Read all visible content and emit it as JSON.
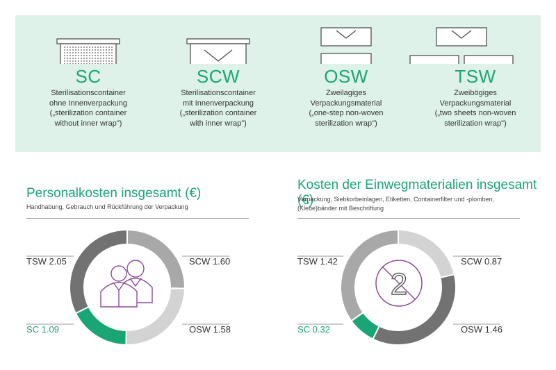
{
  "colors": {
    "accent": "#1aa674",
    "panel_bg": "#dff2ea",
    "slice_light": "#d3d3d3",
    "slice_mid": "#a8a8a8",
    "slice_dark": "#727272",
    "slice_darkest": "#5d5d5d",
    "icon_purple": "#8e4a9e"
  },
  "packaging": [
    {
      "abbr": "SC",
      "desc": "Sterilisationscontainer\nohne Innenverpackung\n(„sterilization container\nwithout inner wrap\")",
      "icon": "container-dotted-icon"
    },
    {
      "abbr": "SCW",
      "desc": "Sterilisationscontainer\nmit Innenverpackung\n(„sterilization container\nwith inner wrap\")",
      "icon": "container-wrap-icon"
    },
    {
      "abbr": "OSW",
      "desc": "Zweilagiges\nVerpackungsmaterial\n(„one-step non-woven\nsterilization wrap\")",
      "icon": "envelope-single-sheet-icon"
    },
    {
      "abbr": "TSW",
      "desc": "Zweibögiges\nVerpackungsmaterial\n(„two sheets non-woven\nsterilization wrap\")",
      "icon": "envelope-two-sheets-icon"
    }
  ],
  "chart_data": [
    {
      "type": "pie",
      "title": "Personalkosten insgesamt (€)",
      "subtitle": "Handhabung, Gebrauch und Rückführung der Verpackung",
      "categories": [
        "SCW",
        "OSW",
        "SC",
        "TSW"
      ],
      "values": [
        1.6,
        1.58,
        1.09,
        2.05
      ],
      "labels": [
        "SCW 1.60",
        "OSW 1.58",
        "SC 1.09",
        "TSW 2.05"
      ],
      "colors": [
        "#a8a8a8",
        "#d3d3d3",
        "#1aa674",
        "#727272"
      ],
      "center_icon": "people-icon"
    },
    {
      "type": "pie",
      "title": "Kosten der Einwegmaterialien insgesamt (€)",
      "subtitle": "Verpackung, Siebkorbeinlagen, Etiketten, Containerfilter und -plomben,\n(Klebe)bänder mit Beschriftung",
      "categories": [
        "SCW",
        "OSW",
        "SC",
        "TSW"
      ],
      "values": [
        0.87,
        1.46,
        0.32,
        1.42
      ],
      "labels": [
        "SCW 0.87",
        "OSW 1.46",
        "SC 0.32",
        "TSW 1.42"
      ],
      "colors": [
        "#d3d3d3",
        "#727272",
        "#1aa674",
        "#a8a8a8"
      ],
      "center_icon": "no-reuse-icon",
      "center_text": "2"
    }
  ]
}
